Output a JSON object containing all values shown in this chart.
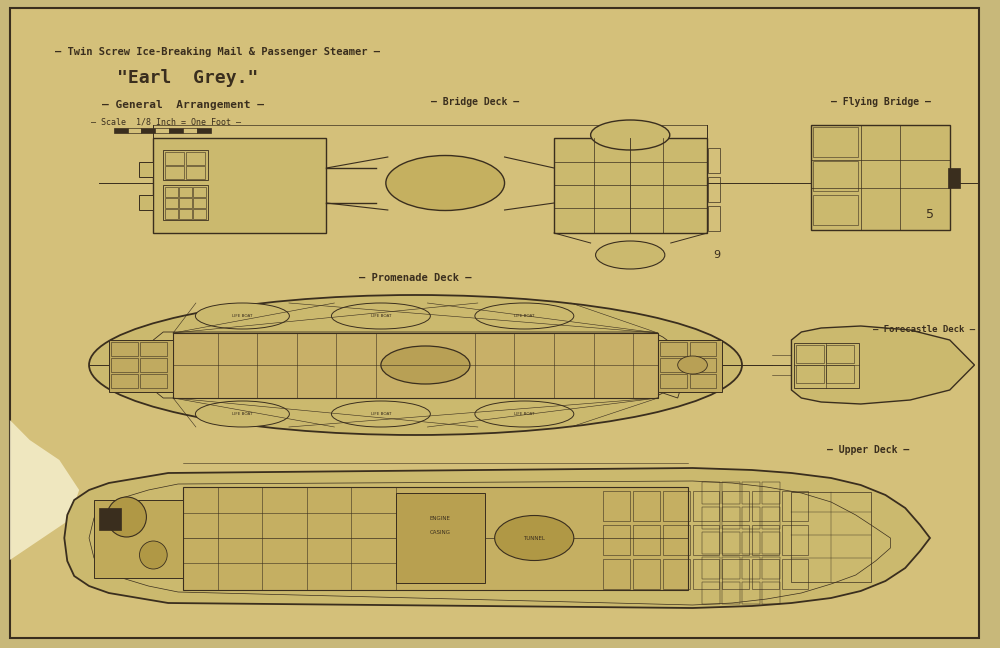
{
  "bg_color": "#c8b87a",
  "paper_color": "#d4c07a",
  "paper_inner": "#cbb96e",
  "line_color": "#3a2e1e",
  "stain_color": "#e8ddb0",
  "title_line1": "— Twin Screw Ice-Breaking Mail & Passenger Steamer —",
  "title_line2": "\"Earl  Grey.\"",
  "title_line3": "— General  Arrangement —",
  "title_line4": "— Scale  1/8 Inch = One Foot —",
  "label_bridge": "— Bridge Deck —",
  "label_promenade": "— Promenade Deck —",
  "label_upper": "— Upper Deck —",
  "label_flying": "— Flying Bridge —",
  "label_forecastle": "— Forecastle Deck —"
}
